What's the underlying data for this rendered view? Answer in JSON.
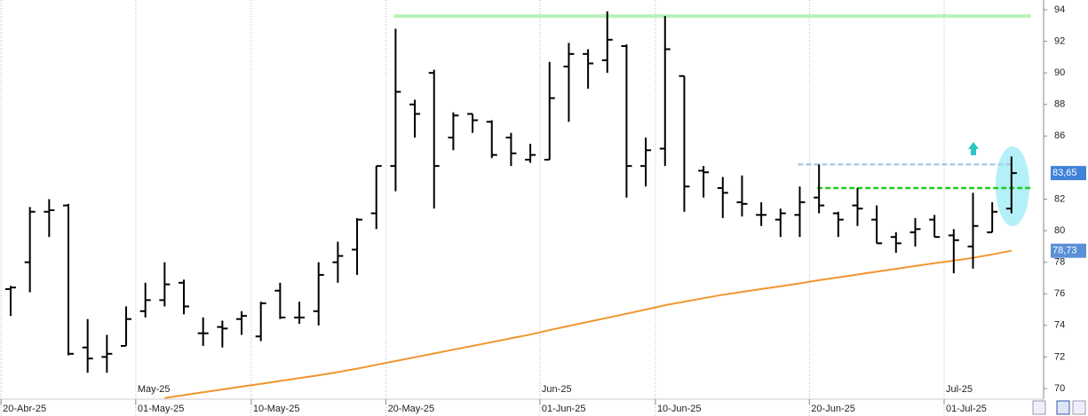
{
  "chart_data": {
    "type": "ohlc",
    "categories": [
      "20-Abr-25",
      null,
      null,
      null,
      null,
      null,
      null,
      "01-May-25",
      null,
      null,
      null,
      null,
      null,
      "10-May-25",
      null,
      null,
      null,
      null,
      null,
      null,
      "20-May-25",
      null,
      null,
      null,
      null,
      null,
      null,
      null,
      "01-Jun-25",
      null,
      null,
      null,
      null,
      null,
      "10-Jun-25",
      null,
      null,
      null,
      null,
      null,
      null,
      null,
      "20-Jun-25",
      null,
      null,
      null,
      null,
      null,
      null,
      "01-Jul-25",
      null,
      null,
      null
    ],
    "top_categories": [
      null,
      null,
      null,
      null,
      null,
      null,
      null,
      "May-25",
      null,
      null,
      null,
      null,
      null,
      null,
      null,
      null,
      null,
      null,
      null,
      null,
      null,
      null,
      null,
      null,
      null,
      null,
      null,
      null,
      "Jun-25",
      null,
      null,
      null,
      null,
      null,
      null,
      null,
      null,
      null,
      null,
      null,
      null,
      null,
      null,
      null,
      null,
      null,
      null,
      null,
      null,
      "Jul-25",
      null,
      null,
      null
    ],
    "open": [
      76.3,
      78.0,
      81.2,
      81.6,
      72.6,
      72.0,
      72.7,
      74.9,
      75.6,
      76.7,
      73.5,
      73.9,
      74.4,
      73.3,
      76.2,
      74.5,
      74.9,
      78.0,
      78.8,
      81.1,
      84.1,
      88.0,
      90.0,
      85.9,
      87.4,
      86.9,
      85.9,
      84.5,
      84.5,
      90.4,
      91.2,
      90.8,
      91.7,
      84.1,
      85.2,
      89.8,
      83.8,
      82.7,
      81.8,
      81.0,
      80.7,
      81.0,
      82.1,
      81.1,
      81.6,
      80.7,
      79.6,
      79.9,
      80.7,
      79.7,
      79.0,
      79.9,
      81.4
    ],
    "high": [
      76.5,
      81.5,
      82.0,
      81.7,
      74.4,
      73.4,
      75.2,
      76.7,
      78.0,
      76.9,
      74.5,
      74.3,
      74.9,
      75.5,
      76.7,
      75.5,
      78.0,
      79.3,
      80.8,
      84.1,
      92.8,
      88.3,
      90.2,
      87.5,
      87.4,
      87.0,
      86.2,
      85.5,
      90.7,
      91.9,
      91.5,
      93.9,
      91.8,
      85.9,
      93.6,
      89.8,
      84.1,
      83.4,
      83.5,
      81.8,
      81.4,
      82.8,
      84.2,
      81.2,
      82.7,
      81.6,
      79.9,
      80.8,
      81.0,
      80.1,
      82.4,
      81.8,
      84.7
    ],
    "low": [
      74.6,
      76.1,
      79.6,
      72.1,
      71.0,
      71.0,
      72.7,
      74.5,
      75.2,
      74.7,
      72.7,
      72.6,
      73.4,
      73.0,
      74.4,
      74.1,
      74.0,
      76.7,
      77.2,
      80.1,
      82.5,
      85.9,
      81.4,
      85.1,
      86.2,
      84.6,
      84.1,
      84.3,
      84.5,
      86.9,
      89.0,
      90.0,
      82.1,
      82.8,
      84.1,
      81.2,
      82.1,
      80.8,
      80.9,
      80.3,
      79.6,
      79.6,
      81.1,
      79.6,
      80.3,
      79.2,
      78.6,
      79.0,
      79.6,
      77.3,
      77.6,
      79.9,
      81.1
    ],
    "close": [
      76.4,
      81.2,
      81.3,
      72.2,
      71.9,
      72.2,
      74.4,
      75.6,
      76.6,
      75.2,
      73.5,
      73.8,
      74.6,
      75.4,
      74.5,
      74.5,
      77.2,
      78.4,
      80.7,
      84.1,
      88.8,
      87.4,
      84.1,
      87.3,
      87.0,
      84.8,
      84.9,
      84.8,
      88.4,
      91.2,
      90.6,
      92.1,
      84.1,
      85.1,
      91.5,
      82.8,
      83.7,
      82.4,
      81.7,
      81.0,
      81.1,
      81.8,
      81.6,
      80.7,
      81.4,
      79.2,
      79.2,
      80.1,
      79.6,
      79.4,
      80.3,
      81.2,
      83.65
    ],
    "color": "#000000",
    "moving_average": {
      "color": "#f0962e",
      "values": [
        null,
        null,
        null,
        null,
        null,
        null,
        null,
        null,
        69.4,
        69.58,
        69.76,
        69.94,
        70.12,
        70.3,
        70.48,
        70.66,
        70.84,
        71.04,
        71.26,
        71.5,
        71.74,
        71.98,
        72.22,
        72.46,
        72.7,
        72.94,
        73.18,
        73.42,
        73.7,
        73.96,
        74.22,
        74.48,
        74.74,
        75.0,
        75.28,
        75.5,
        75.72,
        75.94,
        76.12,
        76.3,
        76.48,
        76.66,
        76.86,
        77.04,
        77.22,
        77.4,
        77.58,
        77.76,
        77.94,
        78.1,
        78.28,
        78.5,
        78.73
      ]
    },
    "levels": [
      {
        "value": 93.6,
        "color": "#b8f2b8",
        "dashed": false,
        "from": 20,
        "extend": true
      },
      {
        "value": 84.2,
        "color": "#a9cde6",
        "dashed": true,
        "from": 41,
        "extend": false
      },
      {
        "value": 82.7,
        "color": "#22cc22",
        "dashed": true,
        "from": 42,
        "extend": true
      }
    ],
    "price_labels": [
      {
        "value": 83.65,
        "label": "83,65",
        "color": "#3f82d8"
      },
      {
        "value": 78.73,
        "label": "78,73",
        "color": "#5a90d8"
      }
    ],
    "ylim": [
      70,
      94
    ],
    "yticks": [
      70,
      72,
      74,
      76,
      78,
      80,
      82,
      86,
      88,
      90,
      92,
      94
    ],
    "grid": true
  }
}
